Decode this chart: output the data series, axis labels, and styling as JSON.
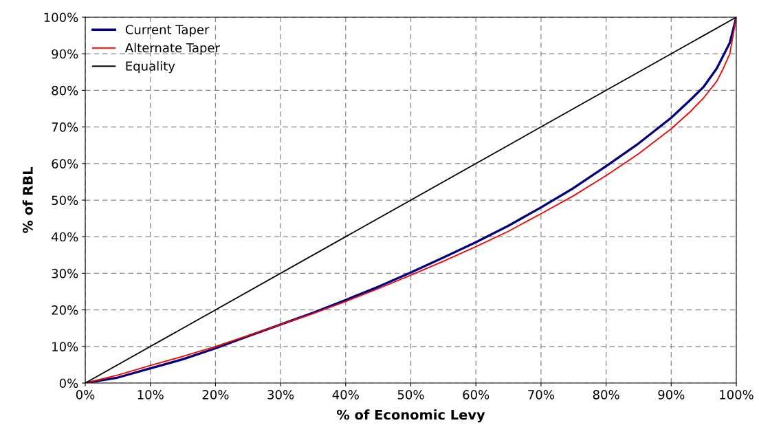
{
  "chart_data": {
    "type": "line",
    "xlabel": "% of Economic Levy",
    "ylabel": "% of RBL",
    "xlim": [
      0,
      100
    ],
    "ylim": [
      0,
      100
    ],
    "xticks": [
      {
        "value": 0,
        "label": "0%"
      },
      {
        "value": 10,
        "label": "10%"
      },
      {
        "value": 20,
        "label": "20%"
      },
      {
        "value": 30,
        "label": "30%"
      },
      {
        "value": 40,
        "label": "40%"
      },
      {
        "value": 50,
        "label": "50%"
      },
      {
        "value": 60,
        "label": "60%"
      },
      {
        "value": 70,
        "label": "70%"
      },
      {
        "value": 80,
        "label": "80%"
      },
      {
        "value": 90,
        "label": "90%"
      },
      {
        "value": 100,
        "label": "100%"
      }
    ],
    "yticks": [
      {
        "value": 0,
        "label": "0%"
      },
      {
        "value": 10,
        "label": "10%"
      },
      {
        "value": 20,
        "label": "20%"
      },
      {
        "value": 30,
        "label": "30%"
      },
      {
        "value": 40,
        "label": "40%"
      },
      {
        "value": 50,
        "label": "50%"
      },
      {
        "value": 60,
        "label": "60%"
      },
      {
        "value": 70,
        "label": "70%"
      },
      {
        "value": 80,
        "label": "80%"
      },
      {
        "value": 90,
        "label": "90%"
      },
      {
        "value": 100,
        "label": "100%"
      }
    ],
    "grid": true,
    "legend": "top left",
    "marker": "none",
    "line_style": "solid",
    "x": [
      0,
      5,
      10,
      15,
      20,
      25,
      30,
      35,
      40,
      45,
      50,
      55,
      60,
      65,
      70,
      75,
      80,
      85,
      90,
      93,
      95,
      97,
      98,
      99,
      100
    ],
    "series": [
      {
        "name": "Current Taper",
        "color": "#000080",
        "values": [
          0,
          1.5,
          4,
          6.5,
          9.5,
          12.8,
          16,
          19.2,
          22.7,
          26.3,
          30.2,
          34.3,
          38.5,
          43,
          48,
          53.3,
          59.3,
          65.5,
          72.5,
          77.5,
          81,
          86,
          89.5,
          93,
          100
        ]
      },
      {
        "name": "Alternate Taper",
        "color": "#ff0000",
        "values": [
          0,
          2.2,
          4.8,
          7.3,
          10,
          13,
          16,
          19,
          22.3,
          25.8,
          29.5,
          33.3,
          37.3,
          41.5,
          46.3,
          51.2,
          56.7,
          62.7,
          69.5,
          74.3,
          78,
          82.5,
          86,
          90,
          100
        ]
      },
      {
        "name": "Equality",
        "color": "#000000",
        "x": [
          0,
          100
        ],
        "values": [
          0,
          100
        ]
      }
    ]
  }
}
